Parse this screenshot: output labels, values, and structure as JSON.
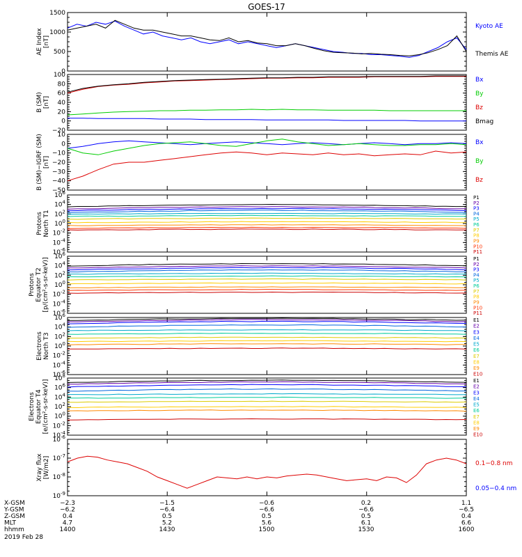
{
  "title": "GOES-17",
  "colors": {
    "blue": "#0000ff",
    "green": "#00cc00",
    "red": "#dd0000",
    "black": "#000000",
    "darkred": "#cc0000"
  },
  "chart_data": [
    {
      "type": "line",
      "panel": "ae",
      "ylabel": [
        "AE Index",
        "[nT]"
      ],
      "ylim": [
        0,
        1500
      ],
      "yticks": [
        "1500",
        "1000",
        "500",
        "0"
      ],
      "series": [
        {
          "name": "Kyoto AE",
          "color": "#0000ff",
          "values": [
            1100,
            1200,
            1150,
            1250,
            1200,
            1280,
            1150,
            1050,
            950,
            1000,
            900,
            850,
            800,
            850,
            750,
            700,
            750,
            800,
            700,
            750,
            700,
            650,
            600,
            650,
            700,
            650,
            600,
            550,
            500,
            480,
            450,
            450,
            420,
            420,
            400,
            380,
            350,
            400,
            500,
            600,
            750,
            850,
            550
          ]
        },
        {
          "name": "Themis AE",
          "color": "#000000",
          "values": [
            1050,
            1100,
            1150,
            1200,
            1100,
            1300,
            1200,
            1100,
            1050,
            1050,
            1000,
            950,
            900,
            900,
            850,
            800,
            780,
            850,
            750,
            780,
            720,
            700,
            650,
            650,
            700,
            650,
            580,
            520,
            480,
            470,
            460,
            440,
            450,
            430,
            420,
            400,
            390,
            420,
            470,
            550,
            650,
            900,
            500
          ]
        }
      ]
    },
    {
      "type": "line",
      "panel": "bsm",
      "ylabel": [
        "B (SM)",
        "[nT]"
      ],
      "ylim": [
        -20,
        100
      ],
      "yticks": [
        "100",
        "80",
        "60",
        "40",
        "20",
        "0",
        "−20"
      ],
      "series": [
        {
          "name": "Bx",
          "color": "#0000ff",
          "values": [
            6,
            6,
            5,
            5,
            5,
            5,
            4,
            4,
            4,
            3,
            3,
            3,
            3,
            2,
            2,
            2,
            2,
            2,
            1,
            1,
            1,
            1,
            1,
            0,
            0,
            0,
            0
          ]
        },
        {
          "name": "By",
          "color": "#00cc00",
          "values": [
            13,
            15,
            17,
            19,
            20,
            21,
            22,
            22,
            23,
            23,
            24,
            24,
            25,
            24,
            25,
            24,
            24,
            23,
            23,
            23,
            23,
            22,
            22,
            22,
            22,
            22,
            22
          ]
        },
        {
          "name": "Bz",
          "color": "#dd0000",
          "values": [
            60,
            68,
            74,
            77,
            79,
            82,
            84,
            86,
            87,
            88,
            89,
            90,
            91,
            92,
            92,
            93,
            93,
            94,
            94,
            94,
            95,
            95,
            95,
            95,
            96,
            96,
            96
          ]
        },
        {
          "name": "Bmag",
          "color": "#000000",
          "values": [
            62,
            70,
            75,
            78,
            80,
            83,
            85,
            87,
            88,
            89,
            90,
            91,
            92,
            93,
            93,
            94,
            94,
            95,
            95,
            95,
            96,
            96,
            96,
            96,
            97,
            97,
            97
          ]
        }
      ]
    },
    {
      "type": "line",
      "panel": "bigrf",
      "ylabel": [
        "B (SM)−IGRF (SM)",
        "[nT]"
      ],
      "ylim": [
        -50,
        10
      ],
      "yticks": [
        "10",
        "0",
        "−10",
        "−20",
        "−30",
        "−40",
        "−50"
      ],
      "series": [
        {
          "name": "Bx",
          "color": "#0000ff",
          "values": [
            -5,
            -3,
            0,
            2,
            3,
            2,
            1,
            0,
            -1,
            0,
            1,
            2,
            1,
            0,
            -1,
            0,
            1,
            0,
            -1,
            0,
            1,
            0,
            -1,
            0,
            0,
            1,
            0
          ]
        },
        {
          "name": "By",
          "color": "#00cc00",
          "values": [
            -5,
            -10,
            -12,
            -8,
            -5,
            -2,
            0,
            1,
            2,
            0,
            -2,
            -3,
            0,
            3,
            5,
            2,
            0,
            -2,
            -1,
            0,
            -1,
            -2,
            -2,
            -1,
            -1,
            0,
            -1
          ]
        },
        {
          "name": "Bz",
          "color": "#dd0000",
          "values": [
            -40,
            -35,
            -28,
            -22,
            -20,
            -20,
            -18,
            -16,
            -14,
            -12,
            -10,
            -9,
            -10,
            -12,
            -10,
            -11,
            -12,
            -10,
            -12,
            -11,
            -13,
            -12,
            -11,
            -12,
            -8,
            -10,
            -9
          ]
        }
      ]
    },
    {
      "type": "line",
      "panel": "pnorth",
      "ylabel": [
        "Protons",
        "North T1"
      ],
      "ylim": [
        -7,
        6
      ],
      "yticks": [
        "10^6",
        "10^4",
        "10^2",
        "10^0",
        "10^-2",
        "10^-4",
        "10^-6"
      ],
      "labels": [
        "P1",
        "P2",
        "P3",
        "P4",
        "P5",
        "P6",
        "P7",
        "P8",
        "P9",
        "P10",
        "P11"
      ],
      "colors": [
        "#000000",
        "#6600aa",
        "#0000ff",
        "#0066dd",
        "#00aacc",
        "#00cc99",
        "#ddcc00",
        "#ffcc00",
        "#ff8800",
        "#ff3300",
        "#cc0000"
      ],
      "levels": [
        3.3,
        2.8,
        2.4,
        2.0,
        1.6,
        1.1,
        0.5,
        -0.3,
        -1.0,
        -1.6,
        -2.0
      ]
    },
    {
      "type": "line",
      "panel": "pequator",
      "ylabel": [
        "Protons",
        "Equator T2",
        "[p/(cm²-s-sr-keV)]"
      ],
      "ylim": [
        -7,
        6
      ],
      "yticks": [
        "10^6",
        "10^4",
        "10^2",
        "10^0",
        "10^-2",
        "10^-4",
        "10^-6"
      ],
      "labels": [
        "P1",
        "P2",
        "P3",
        "P4",
        "P5",
        "P6",
        "P7",
        "P8",
        "P9",
        "P10",
        "P11"
      ],
      "colors": [
        "#000000",
        "#6600aa",
        "#0000ff",
        "#0066dd",
        "#00aacc",
        "#00cc99",
        "#ddcc00",
        "#ffcc00",
        "#ff8800",
        "#ff3300",
        "#cc0000"
      ],
      "levels": [
        3.8,
        3.3,
        2.9,
        2.4,
        1.9,
        1.3,
        0.6,
        -0.3,
        -1.2,
        -1.8,
        -2.4
      ]
    },
    {
      "type": "line",
      "panel": "enorth",
      "ylabel": [
        "Electrons",
        "North T3"
      ],
      "ylim": [
        -7,
        6
      ],
      "yticks": [
        "10^6",
        "10^4",
        "10^2",
        "10^0",
        "10^-2",
        "10^-4",
        "10^-6"
      ],
      "labels": [
        "E1",
        "E2",
        "E3",
        "E4",
        "E5",
        "E6",
        "E7",
        "E8",
        "E9",
        "E10"
      ],
      "colors": [
        "#000000",
        "#6600aa",
        "#0000ff",
        "#0066dd",
        "#00aacc",
        "#00cc99",
        "#ddcc00",
        "#ffcc00",
        "#ff8800",
        "#cc0000"
      ],
      "levels": [
        5.3,
        5.0,
        4.6,
        3.8,
        3.0,
        2.2,
        1.3,
        0.5,
        -0.2,
        -1.2
      ]
    },
    {
      "type": "line",
      "panel": "eequator",
      "ylabel": [
        "Electrons",
        "Equator T4",
        "[e/(cm²-s-sr-keV)]"
      ],
      "ylim": [
        -5,
        8
      ],
      "yticks": [
        "10^8",
        "10^6",
        "10^4",
        "10^2",
        "10^0",
        "10^-2",
        "10^-4"
      ],
      "labels": [
        "E1",
        "E2",
        "E3",
        "E4",
        "E5",
        "E6",
        "E7",
        "E8",
        "E9",
        "E10"
      ],
      "colors": [
        "#000000",
        "#6600aa",
        "#0000ff",
        "#0066dd",
        "#00aacc",
        "#00cc99",
        "#ddcc00",
        "#ffcc00",
        "#ff8800",
        "#cc0000"
      ],
      "levels": [
        7.0,
        6.6,
        6.0,
        5.0,
        4.2,
        3.4,
        2.5,
        1.3,
        0.5,
        -1.5
      ]
    },
    {
      "type": "line",
      "panel": "xray",
      "ylabel": [
        "Xray flux",
        "[W/m2]"
      ],
      "ylim": [
        -9,
        -6
      ],
      "yticks": [
        "10^-6",
        "10^-7",
        "10^-8",
        "10^-9"
      ],
      "series": [
        {
          "name": "0.1−0.8 nm",
          "color": "#dd0000",
          "values": [
            -7.2,
            -7.0,
            -6.9,
            -6.95,
            -7.1,
            -7.2,
            -7.3,
            -7.5,
            -7.7,
            -8.0,
            -8.2,
            -8.4,
            -8.6,
            -8.4,
            -8.2,
            -8.0,
            -8.05,
            -8.1,
            -8.0,
            -8.1,
            -8.0,
            -8.05,
            -7.95,
            -7.9,
            -7.85,
            -7.9,
            -8.0,
            -8.1,
            -8.2,
            -8.15,
            -8.1,
            -8.2,
            -8.0,
            -8.05,
            -8.3,
            -7.9,
            -7.3,
            -7.1,
            -7.0,
            -7.1,
            -7.3
          ]
        },
        {
          "name": "0.05−0.4 nm",
          "color": "#0000ff",
          "values": []
        }
      ]
    }
  ],
  "axis": {
    "rows": [
      {
        "label": "X-GSM",
        "vals": [
          "−2.3",
          "−1.5",
          "−0.6",
          "0.2",
          "1.1"
        ]
      },
      {
        "label": "Y-GSM",
        "vals": [
          "−6.2",
          "−6.4",
          "−6.6",
          "−6.6",
          "−6.5"
        ]
      },
      {
        "label": "Z-GSM",
        "vals": [
          "0.4",
          "0.5",
          "0.5",
          "0.5",
          "0.4"
        ]
      },
      {
        "label": "MLT",
        "vals": [
          "4.7",
          "5.2",
          "5.6",
          "6.1",
          "6.6"
        ]
      },
      {
        "label": "hhmm",
        "vals": [
          "1400",
          "1430",
          "1500",
          "1530",
          "1600"
        ]
      }
    ],
    "date": "2019 Feb 28"
  }
}
